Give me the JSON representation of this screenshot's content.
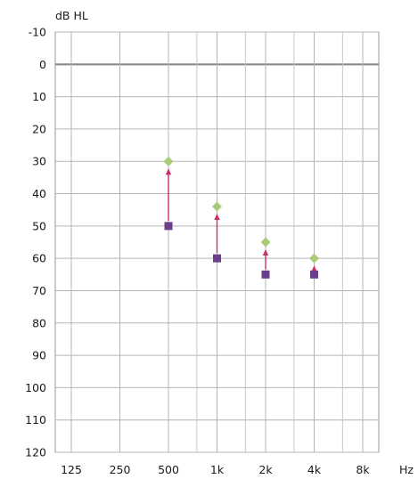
{
  "chart_data": {
    "type": "scatter",
    "title": "",
    "ylabel": "dB HL",
    "xlabel": "Hz",
    "x_scale": "log2",
    "y_inverted": true,
    "x_categories": [
      "125",
      "250",
      "500",
      "1k",
      "2k",
      "4k",
      "8k"
    ],
    "x_frequencies_hz": [
      125,
      250,
      500,
      1000,
      2000,
      4000,
      8000
    ],
    "x_minor_frequencies_hz": [
      750,
      1500,
      3000,
      6000
    ],
    "ylim": [
      -10,
      120
    ],
    "y_ticks": [
      -10,
      0,
      10,
      20,
      30,
      40,
      50,
      60,
      70,
      80,
      90,
      100,
      110,
      120
    ],
    "y_tick_labels": [
      "-10",
      "0",
      "10",
      "20",
      "30",
      "40",
      "50",
      "60",
      "70",
      "80",
      "90",
      "100",
      "110",
      "120"
    ],
    "reference_line_y": 0,
    "grid": true,
    "series": [
      {
        "marker": "square",
        "color": "#6b3f8c",
        "x": [
          500,
          1000,
          2000,
          4000
        ],
        "y": [
          50,
          60,
          65,
          65
        ]
      },
      {
        "marker": "diamond",
        "color": "#a8cc78",
        "x": [
          500,
          1000,
          2000,
          4000
        ],
        "y": [
          30,
          44,
          55,
          60
        ]
      }
    ],
    "arrows": {
      "color": "#cc2e6e",
      "items": [
        {
          "x": 500,
          "from_y": 50,
          "to_y": 30
        },
        {
          "x": 1000,
          "from_y": 60,
          "to_y": 44
        },
        {
          "x": 2000,
          "from_y": 65,
          "to_y": 55
        },
        {
          "x": 4000,
          "from_y": 65,
          "to_y": 60
        }
      ]
    }
  }
}
